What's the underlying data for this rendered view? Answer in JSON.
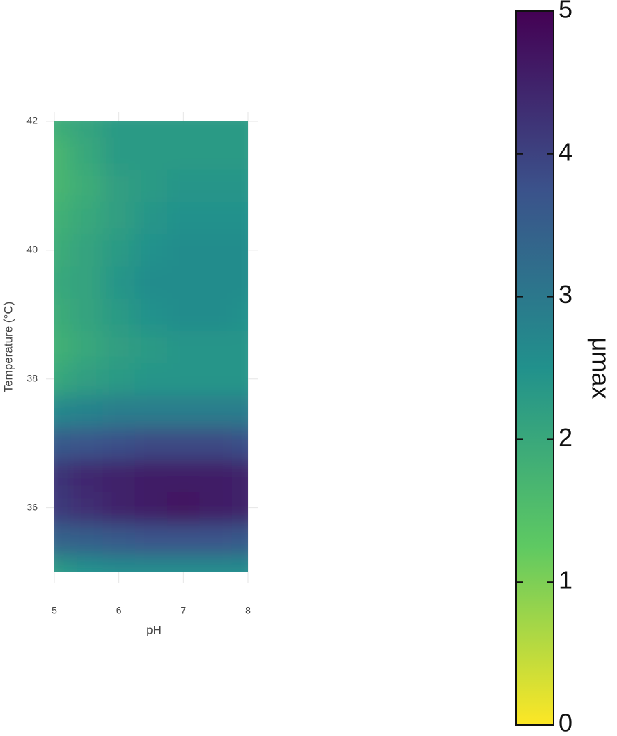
{
  "chart_data": {
    "type": "heatmap",
    "xlabel": "pH",
    "ylabel": "Temperature (°C)",
    "colorbar_label": "μmax",
    "x": [
      5,
      5.5,
      6,
      6.5,
      7,
      7.5,
      8
    ],
    "y": [
      35,
      35.5,
      36,
      36.5,
      37,
      37.5,
      38,
      38.5,
      39,
      39.5,
      40,
      40.5,
      41,
      41.5,
      42
    ],
    "z": [
      [
        2.3,
        2.5,
        2.6,
        2.6,
        2.6,
        2.6,
        2.6
      ],
      [
        3.4,
        3.5,
        3.6,
        3.7,
        3.7,
        3.7,
        3.6
      ],
      [
        4.1,
        4.3,
        4.5,
        4.6,
        4.7,
        4.6,
        4.5
      ],
      [
        4.2,
        4.4,
        4.5,
        4.6,
        4.6,
        4.6,
        4.5
      ],
      [
        3.6,
        3.7,
        3.8,
        3.9,
        3.9,
        3.9,
        3.8
      ],
      [
        2.7,
        2.8,
        2.9,
        2.9,
        2.9,
        2.9,
        2.9
      ],
      [
        2.0,
        2.2,
        2.3,
        2.4,
        2.4,
        2.4,
        2.4
      ],
      [
        1.8,
        2.0,
        2.2,
        2.3,
        2.4,
        2.4,
        2.4
      ],
      [
        1.9,
        2.1,
        2.3,
        2.5,
        2.6,
        2.6,
        2.5
      ],
      [
        2.0,
        2.1,
        2.4,
        2.6,
        2.6,
        2.6,
        2.6
      ],
      [
        1.9,
        2.1,
        2.3,
        2.5,
        2.6,
        2.6,
        2.6
      ],
      [
        1.8,
        2.0,
        2.2,
        2.4,
        2.5,
        2.5,
        2.5
      ],
      [
        1.7,
        1.9,
        2.2,
        2.3,
        2.4,
        2.4,
        2.4
      ],
      [
        1.7,
        2.0,
        2.3,
        2.3,
        2.3,
        2.3,
        2.3
      ],
      [
        1.9,
        2.1,
        2.3,
        2.3,
        2.3,
        2.3,
        2.3
      ]
    ],
    "xlim": [
      5,
      8
    ],
    "ylim": [
      35,
      42
    ],
    "xticks": [
      5,
      6,
      7,
      8
    ],
    "yticks": [
      36,
      38,
      40,
      42
    ],
    "zlim": [
      0,
      5
    ],
    "zticks": [
      0,
      1,
      2,
      3,
      4,
      5
    ],
    "colorscale": [
      "#fde725",
      "#5ec962",
      "#21918c",
      "#3b528b",
      "#440154"
    ],
    "grid": true
  }
}
